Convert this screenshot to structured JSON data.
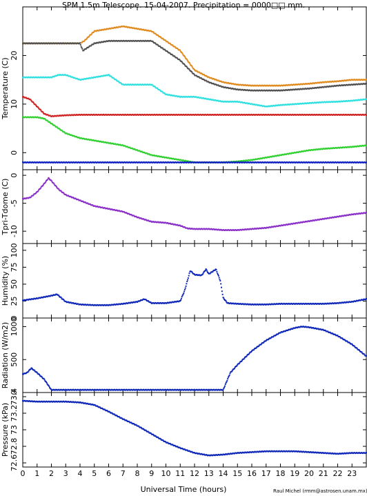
{
  "title": "SPM 1.5m Telescope. 15-04-2007. Precipitation = 0000□□ mm.",
  "credit": "Raul Michel (rmm@astrosen.unam.mx)",
  "xlabel": "Universal Time (hours)",
  "x_ticks": [
    "0",
    "1",
    "2",
    "3",
    "4",
    "5",
    "6",
    "7",
    "8",
    "9",
    "10",
    "11",
    "12",
    "13",
    "14",
    "15",
    "16",
    "17",
    "18",
    "19",
    "20",
    "21",
    "22",
    "23"
  ],
  "chart_data": [
    {
      "type": "scatter",
      "ylabel": "Temperature (C)",
      "xlim": [
        0,
        24
      ],
      "ylim": [
        -3.5,
        30
      ],
      "y_ticks": [
        0,
        10,
        20
      ],
      "series": [
        {
          "color": "#e08a1e",
          "x": [
            0,
            2,
            4,
            4.3,
            5,
            6,
            7,
            8,
            9,
            9.5,
            10,
            10.5,
            11,
            11.5,
            12,
            13,
            14,
            15,
            16,
            17,
            18,
            19,
            20,
            21,
            22,
            23,
            24
          ],
          "y": [
            22.5,
            22.5,
            22.5,
            23,
            25,
            25.5,
            26,
            25.5,
            25,
            24,
            23,
            22,
            21,
            19,
            17,
            15.5,
            14.5,
            14,
            13.8,
            13.8,
            13.8,
            14,
            14.2,
            14.5,
            14.7,
            15,
            15
          ]
        },
        {
          "color": "#505050",
          "x": [
            0,
            2,
            4,
            4.2,
            5,
            6,
            7,
            8,
            9,
            9.5,
            10,
            10.5,
            11,
            11.5,
            12,
            13,
            14,
            15,
            16,
            17,
            18,
            19,
            20,
            21,
            22,
            23,
            24
          ],
          "y": [
            22.5,
            22.5,
            22.5,
            21,
            22.5,
            23,
            23,
            23,
            23,
            22,
            21,
            20,
            19,
            17.5,
            16,
            14.5,
            13.5,
            13,
            12.8,
            12.8,
            12.8,
            13,
            13.2,
            13.5,
            13.8,
            14,
            14.2
          ]
        },
        {
          "color": "#30e0e0",
          "x": [
            0,
            1,
            2,
            2.5,
            3,
            4,
            5,
            6,
            7,
            8,
            9,
            10,
            11,
            11.5,
            12,
            13,
            14,
            15,
            16,
            17,
            18,
            19,
            20,
            21,
            22,
            23,
            24
          ],
          "y": [
            15.5,
            15.5,
            15.5,
            16,
            16,
            15,
            15.5,
            16,
            14,
            14,
            14,
            12,
            11.5,
            11.5,
            11.5,
            11,
            10.5,
            10.5,
            10,
            9.5,
            9.8,
            10,
            10.2,
            10.4,
            10.5,
            10.7,
            11
          ]
        },
        {
          "color": "#d02020",
          "x": [
            0,
            0.5,
            1,
            1.5,
            2,
            3,
            4,
            6,
            8,
            10,
            12,
            14,
            16,
            18,
            20,
            22,
            24
          ],
          "y": [
            11.5,
            11,
            9.5,
            8,
            7.5,
            7.7,
            7.8,
            7.8,
            7.8,
            7.8,
            7.8,
            7.8,
            7.8,
            7.8,
            7.8,
            7.8,
            7.8
          ]
        },
        {
          "color": "#30d030",
          "x": [
            0,
            1,
            1.5,
            2,
            2.5,
            3,
            4,
            5,
            6,
            7,
            8,
            9,
            10,
            11,
            12,
            13,
            14,
            15,
            16,
            17,
            18,
            19,
            20,
            21,
            22,
            23,
            24
          ],
          "y": [
            7.3,
            7.3,
            7,
            6,
            5,
            4,
            3,
            2.5,
            2,
            1.5,
            0.5,
            -0.5,
            -1,
            -1.5,
            -2,
            -2,
            -2,
            -1.8,
            -1.5,
            -1,
            -0.5,
            0,
            0.5,
            0.8,
            1,
            1.2,
            1.5
          ]
        },
        {
          "color": "#1020c0",
          "x": [
            0,
            4,
            8,
            12,
            16,
            20,
            24
          ],
          "y": [
            -2,
            -2,
            -2,
            -2,
            -2,
            -2,
            -2
          ]
        }
      ]
    },
    {
      "type": "scatter",
      "ylabel": "Tpri-Tdome (C)",
      "xlim": [
        0,
        24
      ],
      "ylim": [
        -12.2,
        1
      ],
      "y_ticks": [
        0,
        -5,
        -10
      ],
      "series": [
        {
          "color": "#8a30c8",
          "x": [
            0,
            0.5,
            1,
            1.5,
            1.8,
            2,
            2.5,
            3,
            3.5,
            4,
            5,
            6,
            7,
            8,
            9,
            10,
            11,
            11.5,
            12,
            13,
            14,
            15,
            16,
            17,
            18,
            19,
            20,
            21,
            22,
            23,
            24
          ],
          "y": [
            -4.2,
            -4,
            -3,
            -1.5,
            -0.5,
            -1,
            -2.5,
            -3.5,
            -4,
            -4.5,
            -5.5,
            -6,
            -6.5,
            -7.5,
            -8.3,
            -8.5,
            -9,
            -9.5,
            -9.6,
            -9.6,
            -9.8,
            -9.8,
            -9.6,
            -9.4,
            -9,
            -8.6,
            -8.2,
            -7.8,
            -7.4,
            -7,
            -6.7
          ]
        }
      ]
    },
    {
      "type": "scatter",
      "ylabel": "Humidity (%)",
      "xlim": [
        0,
        24
      ],
      "ylim": [
        0,
        110
      ],
      "y_ticks": [
        0,
        25,
        50,
        75,
        100
      ],
      "series": [
        {
          "color": "#1028b8",
          "x": [
            0,
            1,
            2,
            2.4,
            3,
            4,
            5,
            6,
            7,
            8,
            8.5,
            9,
            10,
            11,
            11.3,
            11.7,
            12,
            12.5,
            12.8,
            13,
            13.5,
            13.8,
            14,
            14.3,
            15,
            16,
            17,
            18,
            19,
            20,
            21,
            22,
            23,
            24
          ],
          "y": [
            26,
            29,
            33,
            35,
            24,
            20,
            19,
            19,
            21,
            24,
            28,
            22,
            22,
            25,
            40,
            70,
            64,
            63,
            72,
            65,
            72,
            55,
            30,
            22,
            21,
            20,
            20,
            21,
            21,
            21,
            21,
            22,
            24,
            28
          ]
        }
      ]
    },
    {
      "type": "scatter",
      "ylabel": "Radiation (W/m2)",
      "xlim": [
        0,
        24
      ],
      "ylim": [
        0,
        1130
      ],
      "y_ticks": [
        0,
        500,
        1000
      ],
      "series": [
        {
          "color": "#1028b8",
          "x": [
            0,
            0.3,
            0.6,
            1,
            1.5,
            2,
            3,
            4,
            5,
            6,
            7,
            8,
            9,
            10,
            11,
            12,
            13,
            14,
            14.5,
            15,
            16,
            17,
            18,
            19,
            19.5,
            20,
            21,
            22,
            23,
            24
          ],
          "y": [
            280,
            300,
            370,
            300,
            200,
            40,
            40,
            40,
            40,
            40,
            40,
            40,
            40,
            40,
            40,
            40,
            40,
            40,
            300,
            420,
            630,
            790,
            910,
            980,
            1000,
            990,
            950,
            860,
            730,
            550
          ]
        }
      ]
    },
    {
      "type": "scatter",
      "ylabel": "Pressure (kPa)",
      "xlim": [
        0,
        24
      ],
      "ylim": [
        72.55,
        73.45
      ],
      "y_ticks": [
        "72.6",
        "72.8",
        "73",
        "73.2",
        "73.4"
      ],
      "y_tick_values": [
        72.6,
        72.8,
        73,
        73.2,
        73.4
      ],
      "series": [
        {
          "color": "#1028b8",
          "x": [
            0,
            1,
            2,
            3,
            4,
            5,
            6,
            7,
            8,
            9,
            10,
            11,
            12,
            13,
            14,
            15,
            16,
            17,
            18,
            19,
            20,
            21,
            22,
            23,
            24
          ],
          "y": [
            73.35,
            73.34,
            73.34,
            73.34,
            73.33,
            73.3,
            73.22,
            73.13,
            73.05,
            72.95,
            72.85,
            72.78,
            72.72,
            72.69,
            72.7,
            72.72,
            72.73,
            72.74,
            72.74,
            72.74,
            72.73,
            72.72,
            72.71,
            72.72,
            72.72
          ]
        }
      ]
    }
  ]
}
